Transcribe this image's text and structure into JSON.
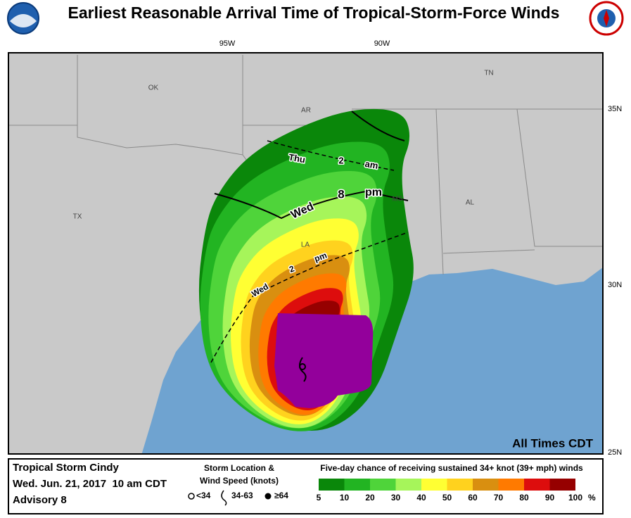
{
  "header": {
    "title": "Earliest Reasonable Arrival Time of Tropical-Storm-Force Winds"
  },
  "map": {
    "lon_labels": [
      "95W",
      "90W"
    ],
    "lat_labels": [
      "35N",
      "30N",
      "25N"
    ],
    "state_labels": [
      "OK",
      "AR",
      "TN",
      "TX",
      "LA",
      "MS",
      "AL"
    ],
    "time_labels": [
      [
        "Thu",
        "2",
        "am"
      ],
      [
        "Wed",
        "8",
        "pm"
      ],
      [
        "Wed",
        "2",
        "pm"
      ]
    ],
    "note": "All Times CDT"
  },
  "legend": {
    "storm": "Tropical Storm Cindy",
    "date": "Wed. Jun. 21, 2017  10 am CDT",
    "advisory": "Advisory 8",
    "symbol_title": [
      "Storm Location &",
      "Wind Speed (knots)"
    ],
    "symbols": [
      "<34",
      "34-63",
      "≥64"
    ],
    "scale_title": "Five-day chance of receiving sustained 34+ knot (39+ mph) winds",
    "scale_labels": [
      5,
      10,
      20,
      30,
      40,
      50,
      60,
      70,
      80,
      90,
      100
    ],
    "unit": "%",
    "colors": [
      "#0a870a",
      "#22b422",
      "#4fd43a",
      "#a6f55a",
      "#ffff33",
      "#ffd21e",
      "#d98f10",
      "#ff7a00",
      "#dd0d0d",
      "#960000",
      "#93009b"
    ]
  }
}
